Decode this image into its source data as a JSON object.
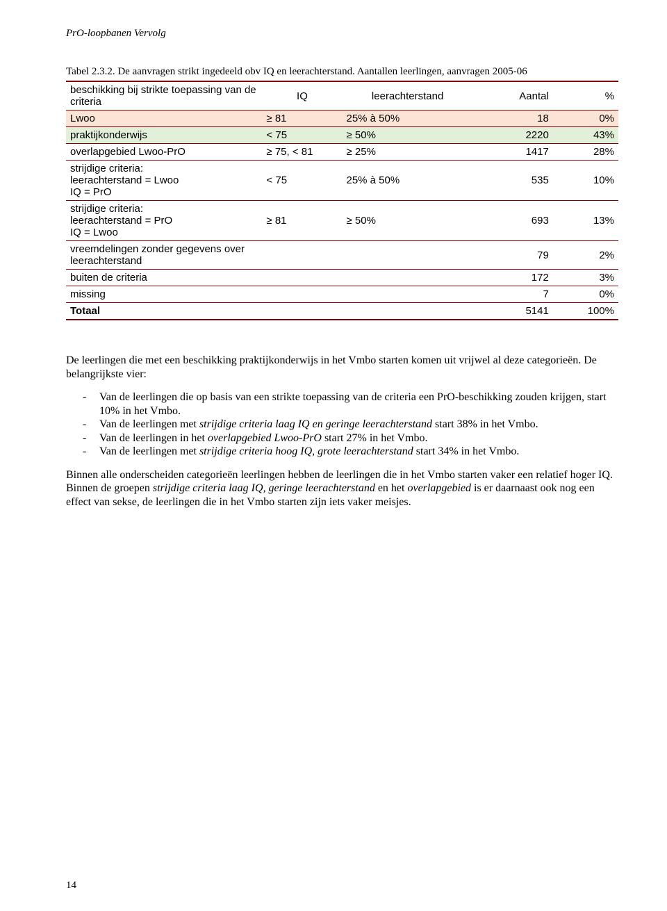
{
  "running_head": "PrO-loopbanen Vervolg",
  "caption": "Tabel 2.3.2. De aanvragen strikt ingedeeld obv IQ en leerachterstand. Aantallen leerlingen, aanvragen 2005-06",
  "table": {
    "header": {
      "col1": "beschikking bij strikte toepassing van de criteria",
      "col2": "IQ",
      "col3": "leerachterstand",
      "col4": "Aantal",
      "col5": "%"
    },
    "rows": [
      {
        "class": "row-orange",
        "c1": "Lwoo",
        "c2": "≥ 81",
        "c3": "25% à 50%",
        "c4": "18",
        "c5": "0%"
      },
      {
        "class": "row-green",
        "c1": "praktijkonderwijs",
        "c2": "< 75",
        "c3": "≥ 50%",
        "c4": "2220",
        "c5": "43%"
      },
      {
        "class": "",
        "c1": "overlapgebied Lwoo-PrO",
        "c2": "≥ 75, < 81",
        "c3": "≥ 25%",
        "c4": "1417",
        "c5": "28%"
      },
      {
        "class": "",
        "c1": "strijdige criteria:\nleerachterstand = Lwoo\nIQ = PrO",
        "c2": "< 75",
        "c3": "25% à 50%",
        "c4": "535",
        "c5": "10%"
      },
      {
        "class": "",
        "c1": "strijdige criteria:\nleerachterstand  = PrO\nIQ  = Lwoo",
        "c2": "≥ 81",
        "c3": "≥ 50%",
        "c4": "693",
        "c5": "13%"
      },
      {
        "class": "",
        "c1": "vreemdelingen zonder gegevens over leerachterstand",
        "c2": "",
        "c3": "",
        "c4": "79",
        "c5": "2%"
      }
    ],
    "buiten": {
      "c1": "buiten de criteria",
      "c4": "172",
      "c5": "3%"
    },
    "missing": {
      "c1": "missing",
      "c4": "7",
      "c5": "0%"
    },
    "totaal": {
      "c1": "Totaal",
      "c4": "5141",
      "c5": "100%"
    }
  },
  "para1_lead": "De leerlingen die met een beschikking praktijkonderwijs in het Vmbo starten komen uit vrijwel al deze categorieën. De belangrijkste vier:",
  "bullets": {
    "b1": "Van de leerlingen die  op basis van een strikte toepassing van de criteria een PrO-beschikking zouden krijgen, start 10% in het Vmbo.",
    "b2_a": "Van de leerlingen met ",
    "b2_i": "strijdige criteria laag IQ en geringe leerachterstand",
    "b2_b": " start 38% in het Vmbo.",
    "b3_a": "Van de leerlingen in het ",
    "b3_i": "overlapgebied Lwoo-PrO",
    "b3_b": " start 27% in het Vmbo.",
    "b4_a": "Van de leerlingen met ",
    "b4_i": "strijdige criteria hoog IQ, grote leerachterstand",
    "b4_b": " start 34% in het Vmbo."
  },
  "para2_a": "Binnen alle onderscheiden categorieën leerlingen hebben de leerlingen die in het Vmbo starten vaker een relatief hoger IQ. Binnen de groepen  ",
  "para2_i1": "strijdige criteria laag IQ, geringe leerachterstand",
  "para2_b": " en het ",
  "para2_i2": "overlapgebied",
  "para2_c": " is er daarnaast ook nog een effect van sekse, de leerlingen die in het Vmbo starten zijn iets vaker meisjes.",
  "page_number": "14"
}
